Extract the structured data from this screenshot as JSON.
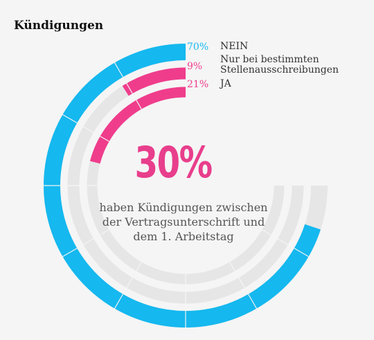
{
  "title": "Kündigungen",
  "center": {
    "value": "30%",
    "line1": "haben Kündigungen zwischen",
    "line2": "der Vertragsunterschrift und",
    "line3": "dem 1. Arbeitstag"
  },
  "colors": {
    "nein": "#15b8ef",
    "highlight": "#ef3d8c",
    "track": "#e6e6e6",
    "background": "#f5f5f5"
  },
  "chart_data": {
    "type": "radial-bar",
    "series": [
      {
        "name": "NEIN",
        "value": 70,
        "label": "70%",
        "color": "#15b8ef"
      },
      {
        "name": "Nur bei bestimmten Stellenausschreibungen",
        "value": 9,
        "label": "9%",
        "color": "#ef3d8c"
      },
      {
        "name": "JA",
        "value": 21,
        "label": "21%",
        "color": "#ef3d8c"
      }
    ]
  },
  "legend": [
    {
      "pct": "70%",
      "label1": "NEIN",
      "label2": "",
      "color": "#15b8ef"
    },
    {
      "pct": "9%",
      "label1": "Nur bei bestimmten",
      "label2": "Stellenausschreibungen",
      "color": "#ef3d8c"
    },
    {
      "pct": "21%",
      "label1": "JA",
      "label2": "",
      "color": "#ef3d8c"
    }
  ]
}
